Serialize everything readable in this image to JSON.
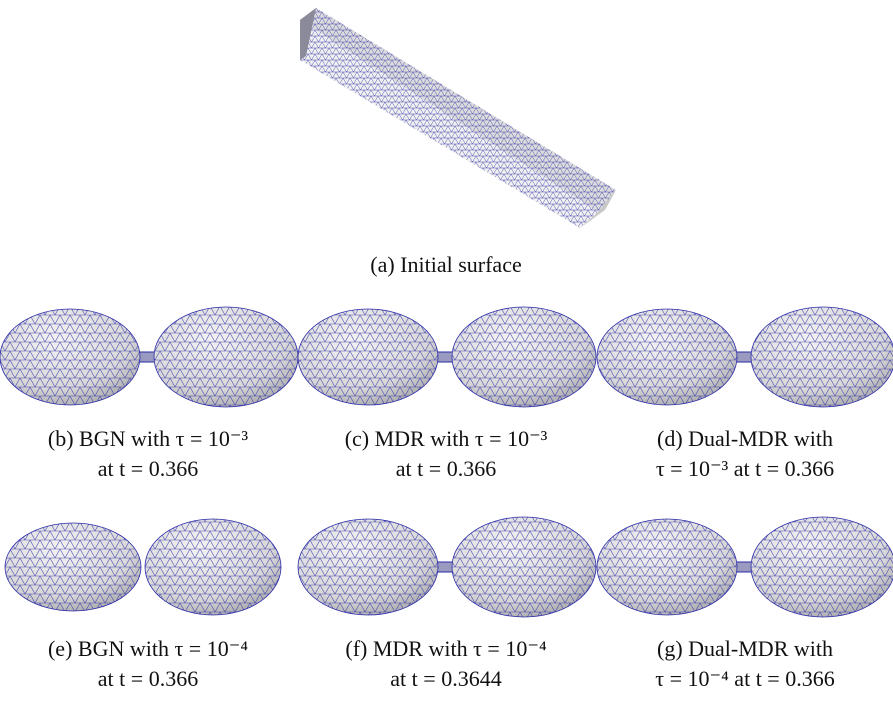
{
  "figure": {
    "main": {
      "caption": "(a) Initial surface"
    },
    "subfigures": [
      {
        "lines": [
          "(b) BGN with τ = 10⁻³",
          "at t = 0.366"
        ]
      },
      {
        "lines": [
          "(c) MDR with τ = 10⁻³",
          "at t = 0.366"
        ]
      },
      {
        "lines": [
          "(d) Dual-MDR with",
          "τ = 10⁻³ at t = 0.366"
        ]
      },
      {
        "lines": [
          "(e) BGN with τ = 10⁻⁴",
          "at t = 0.366"
        ]
      },
      {
        "lines": [
          "(f) MDR with τ = 10⁻⁴",
          "at t = 0.3644"
        ]
      },
      {
        "lines": [
          "(g) Dual-MDR with",
          "τ = 10⁻⁴ at t = 0.366"
        ]
      }
    ]
  }
}
